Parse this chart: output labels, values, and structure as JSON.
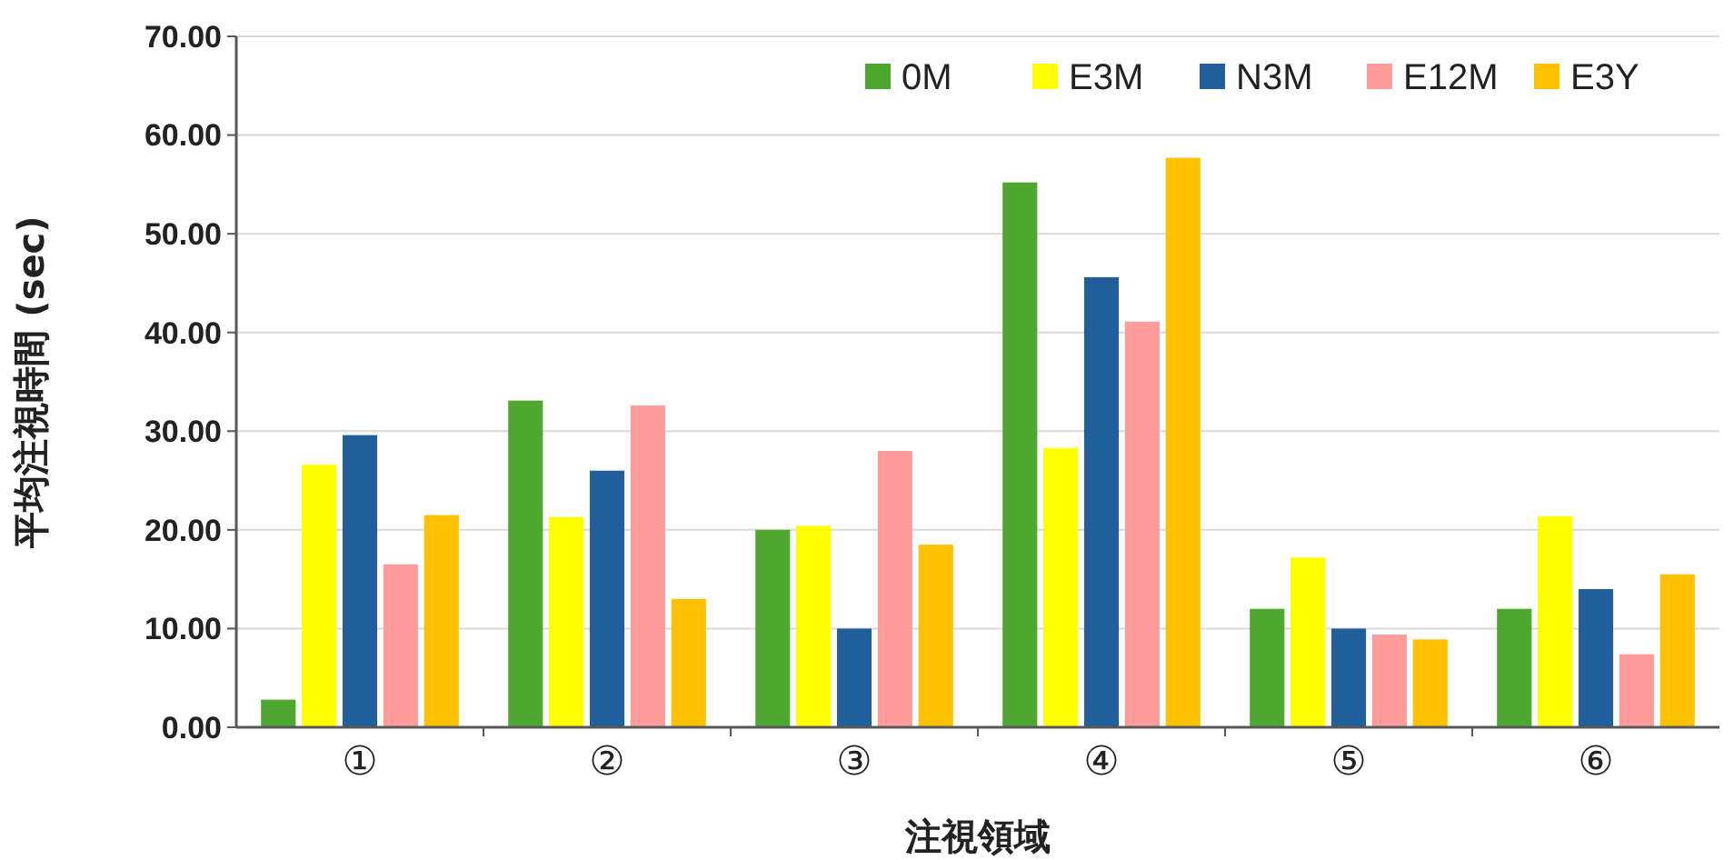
{
  "chart_data": {
    "type": "bar",
    "xlabel": "注視領域",
    "ylabel": "平均注視時間 (sec)",
    "categories": [
      "①",
      "②",
      "③",
      "④",
      "⑤",
      "⑥"
    ],
    "series": [
      {
        "name": "0M",
        "color": "#4ea72e",
        "values": [
          2.8,
          33.1,
          20.0,
          55.2,
          12.0,
          12.0
        ]
      },
      {
        "name": "E3M",
        "color": "#ffff00",
        "values": [
          26.6,
          21.3,
          20.4,
          28.3,
          17.2,
          21.4
        ]
      },
      {
        "name": "N3M",
        "color": "#215f9a",
        "values": [
          29.6,
          26.0,
          10.0,
          45.6,
          10.0,
          14.0
        ]
      },
      {
        "name": "E12M",
        "color": "#ff9b9b",
        "values": [
          16.5,
          32.6,
          28.0,
          41.1,
          9.4,
          7.4
        ]
      },
      {
        "name": "E3Y",
        "color": "#ffc000",
        "values": [
          21.5,
          13.0,
          18.5,
          57.7,
          8.9,
          15.5
        ]
      }
    ],
    "ylim": [
      0,
      70
    ],
    "yticks": [
      {
        "value": 0,
        "label": "0.00"
      },
      {
        "value": 10,
        "label": "10.00"
      },
      {
        "value": 20,
        "label": "20.00"
      },
      {
        "value": 30,
        "label": "30.00"
      },
      {
        "value": 40,
        "label": "40.00"
      },
      {
        "value": 50,
        "label": "50.00"
      },
      {
        "value": 60,
        "label": "60.00"
      },
      {
        "value": 70,
        "label": "70.00"
      }
    ],
    "grid": "y",
    "legend": "top right"
  }
}
